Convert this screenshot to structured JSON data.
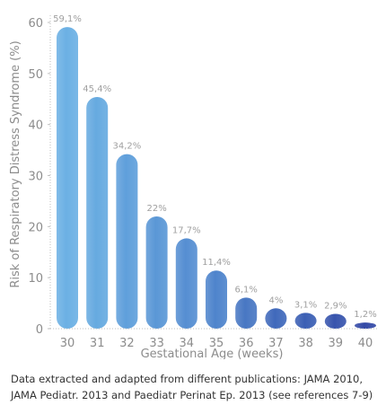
{
  "chart_data": {
    "type": "bar",
    "title": "",
    "xlabel": "Gestational Age (weeks)",
    "ylabel": "Risk of Respiratory Distress Syndrome (%)",
    "ylim": [
      0,
      60
    ],
    "yticks": [
      0,
      10,
      20,
      30,
      40,
      50,
      60
    ],
    "categories": [
      "30",
      "31",
      "32",
      "33",
      "34",
      "35",
      "36",
      "37",
      "38",
      "39",
      "40"
    ],
    "values": [
      59.1,
      45.4,
      34.2,
      22,
      17.7,
      11.4,
      6.1,
      4,
      3.1,
      2.9,
      1.2
    ],
    "data_labels": [
      "59,1%",
      "45,4%",
      "34,2%",
      "22%",
      "17,7%",
      "11,4%",
      "6,1%",
      "4%",
      "3,1%",
      "2,9%",
      "1,2%"
    ],
    "grid": false,
    "legend": "none",
    "colors": {
      "bar_gradient": [
        "#6bb0e4",
        "#66aae0",
        "#5f9fdb",
        "#5a97d6",
        "#558ed2",
        "#4e84cc",
        "#4877c3",
        "#4069bb",
        "#3b5fb4",
        "#3754ad",
        "#3349a6"
      ],
      "axis": "#bfbfbf",
      "text": "#8c8c8c",
      "data_label": "#a0a0a0"
    }
  },
  "footnote": "Data extracted and adapted from different publications: JAMA 2010, JAMA Pediatr. 2013 and Paediatr Perinat Ep. 2013 (see references 7-9)"
}
